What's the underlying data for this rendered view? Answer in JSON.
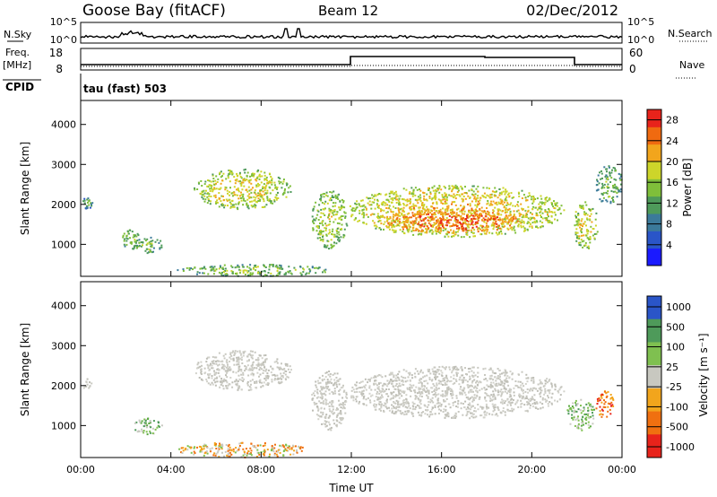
{
  "header": {
    "station": "Goose Bay (fitACF)",
    "beam": "Beam 12",
    "date": "02/Dec/2012"
  },
  "labels": {
    "nsky": "N.Sky",
    "nsearch": "N.Search",
    "freq": "Freq.",
    "freq_unit": "[MHz]",
    "nave": "Nave",
    "cpid": "CPID",
    "cpid_value": "tau (fast) 503",
    "ylabel": "Slant Range [km]",
    "xlabel": "Time UT",
    "power_cb": "Power [dB]",
    "velocity_cb": "Velocity [m s⁻¹]"
  },
  "noise_ticks": [
    "10^5",
    "10^0"
  ],
  "freq_ticks": [
    "18",
    "8"
  ],
  "nave_ticks": [
    "60",
    "0"
  ],
  "chart_data": [
    {
      "type": "heatmap",
      "name": "power",
      "x_ticks": [
        "00:00",
        "04:00",
        "08:00",
        "12:00",
        "16:00",
        "20:00",
        "00:00"
      ],
      "xlim_hours": [
        0,
        24
      ],
      "y_ticks": [
        1000,
        2000,
        3000,
        4000
      ],
      "ylim": [
        200,
        4600
      ],
      "colorbar": {
        "ticks": [
          4,
          8,
          12,
          16,
          20,
          24,
          28
        ],
        "range": [
          0,
          30
        ],
        "colors": [
          "#1a1aff",
          "#2a55c8",
          "#3b7a9a",
          "#4e9a5a",
          "#7fbf3a",
          "#cdd52a",
          "#f2a51c",
          "#f06a10",
          "#e8231b"
        ]
      },
      "regions": [
        {
          "t": [
            0.0,
            0.5
          ],
          "r": [
            1900,
            2200
          ],
          "level": 8
        },
        {
          "t": [
            1.8,
            2.6
          ],
          "r": [
            900,
            1400
          ],
          "level": 10
        },
        {
          "t": [
            2.3,
            3.6
          ],
          "r": [
            800,
            1200
          ],
          "level": 9
        },
        {
          "t": [
            5.0,
            9.3
          ],
          "r": [
            1900,
            2900
          ],
          "level": 14
        },
        {
          "t": [
            4.2,
            11.0
          ],
          "r": [
            220,
            520
          ],
          "level": 10
        },
        {
          "t": [
            10.2,
            11.8
          ],
          "r": [
            900,
            2400
          ],
          "level": 12
        },
        {
          "t": [
            11.8,
            21.4
          ],
          "r": [
            1200,
            2500
          ],
          "level": 16
        },
        {
          "t": [
            13.5,
            19.5
          ],
          "r": [
            1300,
            1900
          ],
          "level": 22
        },
        {
          "t": [
            21.8,
            22.9
          ],
          "r": [
            900,
            2100
          ],
          "level": 14
        },
        {
          "t": [
            22.8,
            24.0
          ],
          "r": [
            2000,
            3000
          ],
          "level": 9
        }
      ]
    },
    {
      "type": "heatmap",
      "name": "velocity",
      "x_ticks": [
        "00:00",
        "04:00",
        "08:00",
        "12:00",
        "16:00",
        "20:00",
        "00:00"
      ],
      "xlim_hours": [
        0,
        24
      ],
      "y_ticks": [
        1000,
        2000,
        3000,
        4000
      ],
      "ylim": [
        200,
        4600
      ],
      "colorbar": {
        "ticks": [
          "1000",
          "500",
          "100",
          "25",
          "-25",
          "-100",
          "-500",
          "-1000"
        ],
        "colors": [
          "#2a55c8",
          "#4e9a5a",
          "#7fc050",
          "#c8c8c0",
          "#f2a51c",
          "#f07010",
          "#e8231b"
        ]
      },
      "regions": [
        {
          "t": [
            0.0,
            0.5
          ],
          "r": [
            1900,
            2200
          ],
          "class": "ground"
        },
        {
          "t": [
            2.3,
            3.6
          ],
          "r": [
            800,
            1200
          ],
          "class": "pos_low"
        },
        {
          "t": [
            5.0,
            9.3
          ],
          "r": [
            1900,
            2900
          ],
          "class": "ground"
        },
        {
          "t": [
            4.2,
            10.0
          ],
          "r": [
            220,
            600
          ],
          "class": "neg_low"
        },
        {
          "t": [
            10.2,
            11.8
          ],
          "r": [
            900,
            2400
          ],
          "class": "ground"
        },
        {
          "t": [
            11.8,
            21.4
          ],
          "r": [
            1200,
            2500
          ],
          "class": "ground"
        },
        {
          "t": [
            21.5,
            22.8
          ],
          "r": [
            900,
            1700
          ],
          "class": "pos_low"
        },
        {
          "t": [
            22.8,
            23.6
          ],
          "r": [
            1200,
            1900
          ],
          "class": "neg_mid"
        }
      ]
    }
  ]
}
